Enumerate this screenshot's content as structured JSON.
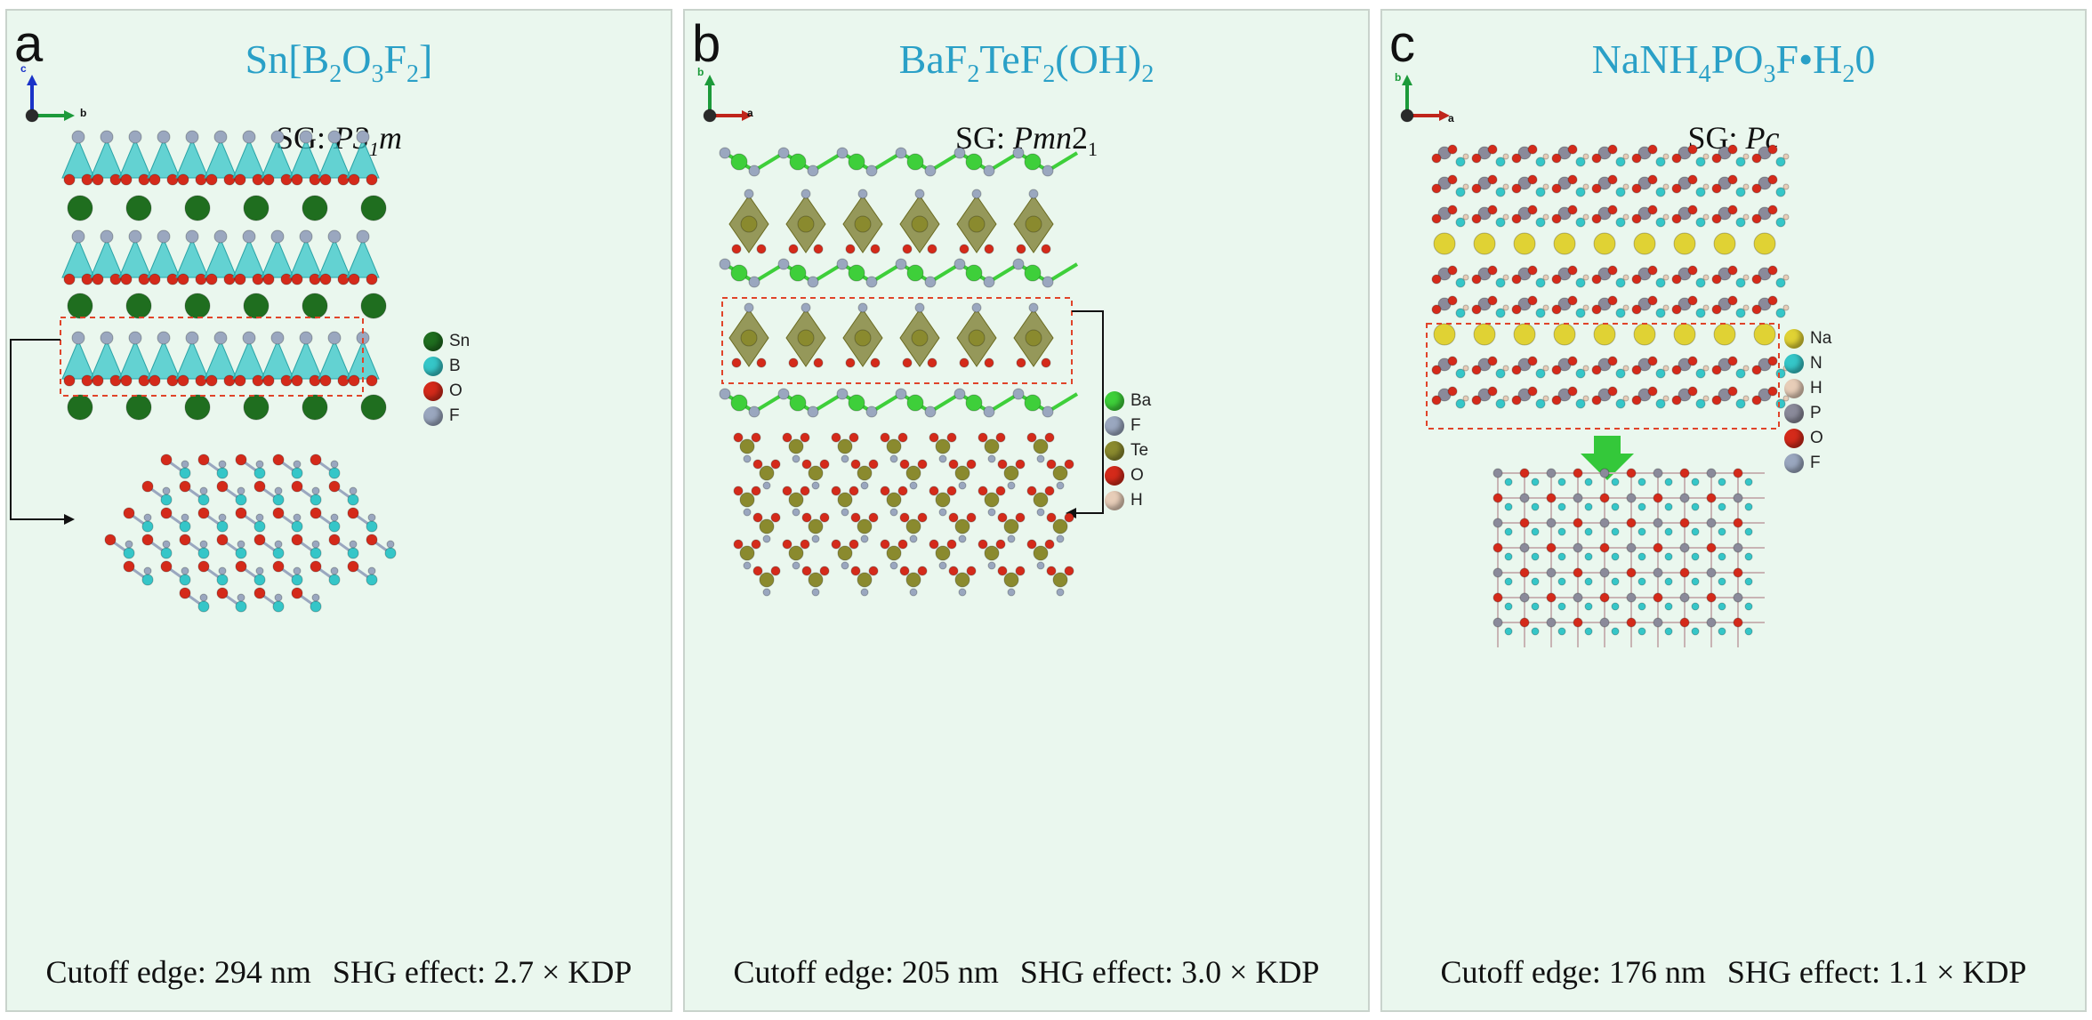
{
  "panels": [
    {
      "letter": "a",
      "formula": {
        "parts": [
          "Sn[B",
          "2",
          "O",
          "3",
          "F",
          "2",
          "]"
        ]
      },
      "space_group": {
        "prefix": "SG: ",
        "symbol": "P3",
        "sub": "1",
        "suffix": "m"
      },
      "axes": {
        "up": "c",
        "right": "b"
      },
      "legend": [
        {
          "label": "Sn",
          "color": "#1f6e1f"
        },
        {
          "label": "B",
          "color": "#35c6c8"
        },
        {
          "label": "O",
          "color": "#d42a1a"
        },
        {
          "label": "F",
          "color": "#9aa7bf"
        }
      ],
      "cutoff": "Cutoff edge: 294 nm",
      "shg": "SHG effect: 2.7 × KDP"
    },
    {
      "letter": "b",
      "formula": {
        "parts": [
          "BaF",
          "2",
          "TeF",
          "2",
          "(OH)",
          "2",
          ""
        ]
      },
      "space_group": {
        "prefix": "SG: ",
        "symbol": "Pmn",
        "sub": "",
        "suffix": "2",
        "suffix_sub": "1"
      },
      "axes": {
        "up": "b",
        "right": "a"
      },
      "legend": [
        {
          "label": "Ba",
          "color": "#3ecf3a"
        },
        {
          "label": "F",
          "color": "#9aa7bf"
        },
        {
          "label": "Te",
          "color": "#8a8a2e"
        },
        {
          "label": "O",
          "color": "#d42a1a"
        },
        {
          "label": "H",
          "color": "#e7cdb8"
        }
      ],
      "cutoff": "Cutoff edge: 205 nm",
      "shg": "SHG effect: 3.0 × KDP"
    },
    {
      "letter": "c",
      "formula": {
        "parts": [
          "NaNH",
          "4",
          "PO",
          "3",
          "F•H",
          "2",
          "0"
        ]
      },
      "space_group": {
        "prefix": "SG: ",
        "symbol": "Pc",
        "sub": "",
        "suffix": ""
      },
      "axes": {
        "up": "b",
        "right": "a"
      },
      "legend": [
        {
          "label": "Na",
          "color": "#e0d234"
        },
        {
          "label": "N",
          "color": "#35c6c8"
        },
        {
          "label": "H",
          "color": "#e7cdb8"
        },
        {
          "label": "P",
          "color": "#8a8a9a"
        },
        {
          "label": "O",
          "color": "#d42a1a"
        },
        {
          "label": "F",
          "color": "#9aa7bf"
        }
      ],
      "cutoff": "Cutoff edge: 176 nm",
      "shg": "SHG effect: 1.1 × KDP"
    }
  ]
}
